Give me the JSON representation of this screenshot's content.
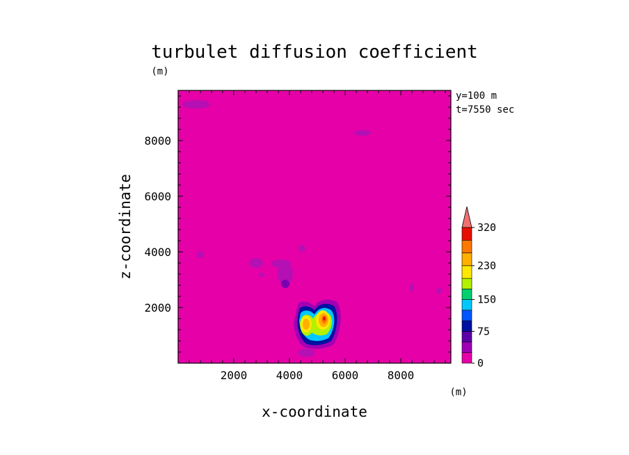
{
  "chart_data": {
    "type": "heatmap",
    "title": "turbulet diffusion coefficient",
    "xlabel": "x-coordinate",
    "ylabel": "z-coordinate",
    "x_unit": "(m)",
    "y_unit": "(m)",
    "annotations": [
      "y=100 m",
      "t=7550 sec"
    ],
    "xlim": [
      0,
      9800
    ],
    "ylim": [
      0,
      9800
    ],
    "x_ticks": [
      2000,
      4000,
      6000,
      8000
    ],
    "y_ticks": [
      2000,
      4000,
      6000,
      8000
    ],
    "x_tick_labels": [
      "2000",
      "4000",
      "6000",
      "8000"
    ],
    "y_tick_labels": [
      "2000",
      "4000",
      "6000",
      "8000"
    ],
    "grid": false,
    "colorbar": {
      "placement": "right",
      "extend": "max",
      "levels": [
        0,
        25,
        50,
        75,
        100,
        125,
        150,
        175,
        200,
        230,
        260,
        290,
        320
      ],
      "tick_labels": [
        "0",
        "75",
        "150",
        "230",
        "320"
      ],
      "tick_values": [
        0,
        75,
        150,
        230,
        320
      ],
      "colors": [
        "#e600a8",
        "#a000b4",
        "#5c00a8",
        "#0010a0",
        "#0055ff",
        "#00c8ff",
        "#00d070",
        "#b4f000",
        "#ffe800",
        "#ffb000",
        "#ff7800",
        "#e81000"
      ],
      "extend_color": "#f07070"
    },
    "background_value": 0,
    "features": [
      {
        "x": 5320,
        "z": 1700,
        "value": 320
      },
      {
        "x": 4680,
        "z": 1450,
        "value": 230
      },
      {
        "x": 5000,
        "z": 1500,
        "value": 150
      },
      {
        "x": 3850,
        "z": 3500,
        "value": 40
      },
      {
        "x": 3600,
        "z": 3700,
        "value": 30
      },
      {
        "x": 4500,
        "z": 4200,
        "value": 30
      },
      {
        "x": 6800,
        "z": 8300,
        "value": 30
      },
      {
        "x": 600,
        "z": 9400,
        "value": 25
      },
      {
        "x": 800,
        "z": 4000,
        "value": 25
      },
      {
        "x": 8500,
        "z": 2700,
        "value": 25
      }
    ]
  }
}
